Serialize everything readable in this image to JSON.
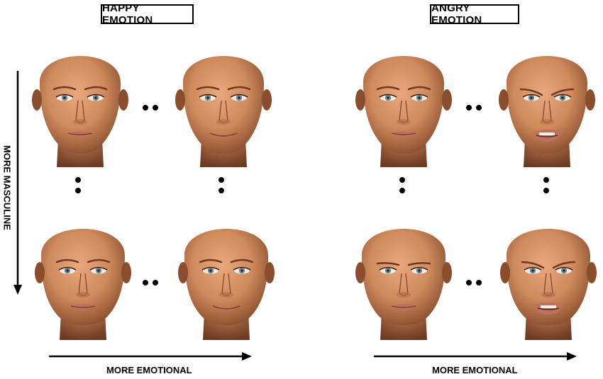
{
  "titles": {
    "happy": "HAPPY EMOTION",
    "angry": "ANGRY EMOTION"
  },
  "axes": {
    "vertical": "MORE MASCULINE",
    "horizontal_left": "MORE EMOTIONAL",
    "horizontal_right": "MORE EMOTIONAL"
  },
  "colors": {
    "skin": "#d08a5c",
    "skin_shadow": "#8a4e2e",
    "lips": "#c0705f",
    "eyes": "#6e8a8e",
    "ink": "#000000"
  },
  "faces": [
    {
      "panel": "happy",
      "masculine": "low",
      "emotion": "low",
      "brow": "neutral",
      "mouth": "neutral"
    },
    {
      "panel": "happy",
      "masculine": "low",
      "emotion": "high",
      "brow": "neutral",
      "mouth": "smile"
    },
    {
      "panel": "happy",
      "masculine": "high",
      "emotion": "low",
      "brow": "neutral",
      "mouth": "neutral"
    },
    {
      "panel": "happy",
      "masculine": "high",
      "emotion": "high",
      "brow": "neutral",
      "mouth": "smile"
    },
    {
      "panel": "angry",
      "masculine": "low",
      "emotion": "low",
      "brow": "neutral",
      "mouth": "neutral"
    },
    {
      "panel": "angry",
      "masculine": "low",
      "emotion": "high",
      "brow": "furrow",
      "mouth": "snarl"
    },
    {
      "panel": "angry",
      "masculine": "high",
      "emotion": "low",
      "brow": "lowered",
      "mouth": "neutral"
    },
    {
      "panel": "angry",
      "masculine": "high",
      "emotion": "high",
      "brow": "furrow",
      "mouth": "snarl"
    }
  ]
}
